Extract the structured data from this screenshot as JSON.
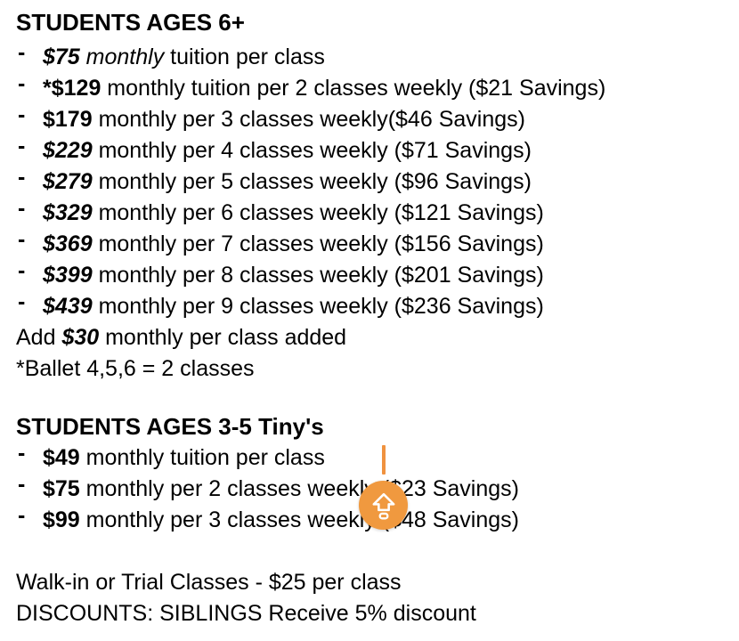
{
  "page": {
    "background": "#ffffff",
    "text_color": "#000000"
  },
  "bullet_char": "-",
  "sections": [
    {
      "heading": "STUDENTS AGES 6+",
      "items": [
        {
          "segments": [
            {
              "text": "$75",
              "style": "bold-italic"
            },
            {
              "text": " "
            },
            {
              "text": "monthly",
              "style": "italic"
            },
            {
              "text": " tuition per class"
            }
          ]
        },
        {
          "segments": [
            {
              "text": "*$129",
              "style": "bold"
            },
            {
              "text": " monthly tuition per 2 classes weekly ($21 Savings)"
            }
          ]
        },
        {
          "segments": [
            {
              "text": "$179",
              "style": "bold"
            },
            {
              "text": " monthly per 3 classes weekly($46 Savings)"
            }
          ]
        },
        {
          "segments": [
            {
              "text": "$229",
              "style": "bold-italic"
            },
            {
              "text": " monthly per 4 classes weekly ($71 Savings)"
            }
          ]
        },
        {
          "segments": [
            {
              "text": "$279",
              "style": "bold-italic"
            },
            {
              "text": " monthly per 5 classes weekly ($96 Savings)"
            }
          ]
        },
        {
          "segments": [
            {
              "text": "$329",
              "style": "bold-italic"
            },
            {
              "text": " monthly per 6 classes weekly ($121 Savings)"
            }
          ]
        },
        {
          "segments": [
            {
              "text": "$369",
              "style": "bold-italic"
            },
            {
              "text": " monthly per 7 classes weekly ($156 Savings)"
            }
          ]
        },
        {
          "segments": [
            {
              "text": "$399",
              "style": "bold-italic"
            },
            {
              "text": " monthly per 8 classes weekly ($201 Savings)"
            }
          ]
        },
        {
          "segments": [
            {
              "text": "$439",
              "style": "bold-italic"
            },
            {
              "text": " monthly per 9 classes weekly ($236 Savings)"
            }
          ]
        }
      ],
      "notes": [
        {
          "segments": [
            {
              "text": "Add "
            },
            {
              "text": "$30",
              "style": "bold-italic"
            },
            {
              "text": " monthly per class added"
            }
          ]
        },
        {
          "segments": [
            {
              "text": "*Ballet 4,5,6 = 2 classes"
            }
          ]
        }
      ]
    },
    {
      "heading": "STUDENTS AGES 3-5 Tiny's",
      "items": [
        {
          "segments": [
            {
              "text": "$49",
              "style": "bold"
            },
            {
              "text": " monthly tuition per class"
            }
          ]
        },
        {
          "segments": [
            {
              "text": "$75",
              "style": "bold"
            },
            {
              "text": " monthly per 2 classes weekly ($23 Savings)"
            }
          ]
        },
        {
          "segments": [
            {
              "text": "$99",
              "style": "bold"
            },
            {
              "text": " monthly per 3 classes weekly ($48 Savings)"
            }
          ]
        }
      ]
    }
  ],
  "footer_lines": [
    "Walk-in or Trial Classes - $25 per class",
    "DISCOUNTS: SIBLINGS Receive 5% discount"
  ],
  "text_cursor": {
    "color": "#F0923F"
  },
  "floating_button": {
    "color": "#F0993F",
    "icon": "caps-lock-up-arrow"
  }
}
